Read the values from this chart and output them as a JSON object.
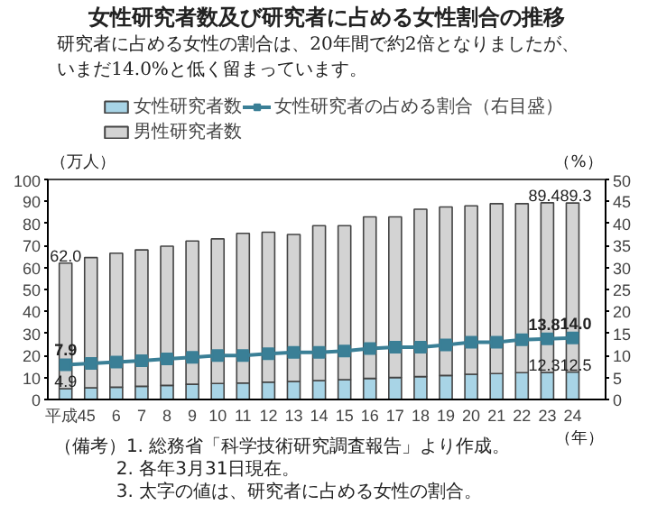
{
  "chart_data": {
    "type": "bar",
    "stacked": true,
    "title": "女性研究者数及び研究者に占める女性割合の推移",
    "subtitle": "研究者に占める女性の割合は、20年間で約2倍となりましたが、いまだ14.0%と低く留まっています。",
    "xlabel": "（年）",
    "ylabel": "（万人）",
    "y2label": "（%）",
    "categories": [
      "平成4",
      "5",
      "6",
      "7",
      "8",
      "9",
      "10",
      "11",
      "12",
      "13",
      "14",
      "15",
      "16",
      "17",
      "18",
      "19",
      "20",
      "21",
      "22",
      "23",
      "24"
    ],
    "series": [
      {
        "name": "女性研究者数",
        "color": "#a8d4e6",
        "values": [
          4.9,
          5.3,
          5.6,
          6.0,
          6.4,
          6.9,
          7.3,
          7.5,
          7.9,
          8.2,
          8.6,
          9.0,
          9.6,
          10.0,
          10.4,
          10.9,
          11.5,
          11.8,
          12.2,
          12.3,
          12.5
        ],
        "value_labels": [
          "4.9",
          null,
          null,
          null,
          null,
          null,
          null,
          null,
          null,
          null,
          null,
          null,
          null,
          null,
          null,
          null,
          null,
          null,
          null,
          "12.3",
          "12.5"
        ]
      },
      {
        "name": "男性研究者数",
        "color": "#d3d3d3",
        "values": [
          57.1,
          59.2,
          60.9,
          62.0,
          63.3,
          65.1,
          65.7,
          68.0,
          68.1,
          66.8,
          70.4,
          70.0,
          73.4,
          73.0,
          76.1,
          76.6,
          76.5,
          77.2,
          76.8,
          77.1,
          76.8
        ]
      },
      {
        "name": "女性研究者の占める割合（右目盛）",
        "type": "line",
        "axis": "y2",
        "color": "#3a7f96",
        "marker": "square",
        "values": [
          7.9,
          8.2,
          8.5,
          8.8,
          9.2,
          9.6,
          10.0,
          10.0,
          10.4,
          10.7,
          10.7,
          11.0,
          11.6,
          11.9,
          11.9,
          12.4,
          13.0,
          13.0,
          13.6,
          13.8,
          14.0
        ],
        "value_labels": [
          "7.9",
          null,
          null,
          null,
          null,
          null,
          null,
          null,
          null,
          null,
          null,
          null,
          null,
          null,
          null,
          null,
          null,
          null,
          null,
          "13.8",
          "14.0"
        ]
      }
    ],
    "totals": [
      "62.0",
      null,
      null,
      null,
      null,
      null,
      null,
      null,
      null,
      null,
      null,
      null,
      null,
      null,
      null,
      null,
      null,
      null,
      null,
      "89.4",
      "89.3"
    ],
    "ylim": [
      0,
      100
    ],
    "yticks": [
      0,
      10,
      20,
      30,
      40,
      50,
      60,
      70,
      80,
      90,
      100
    ],
    "y2lim": [
      0,
      50
    ],
    "y2ticks": [
      0,
      5,
      10,
      15,
      20,
      25,
      30,
      35,
      40,
      45,
      50
    ],
    "grid": false,
    "legend": "top",
    "annotations": [
      "（備考）1. 総務省「科学技術研究調査報告」より作成。",
      "2. 各年3月31日現在。",
      "3. 太字の値は、研究者に占める女性の割合。"
    ]
  }
}
